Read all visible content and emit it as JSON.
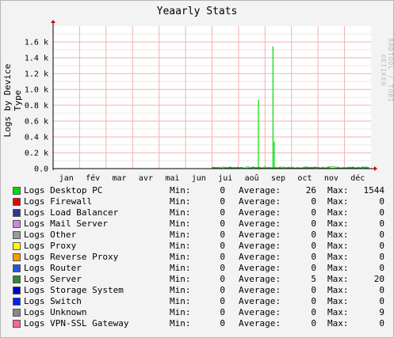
{
  "chart_data": {
    "type": "line",
    "title": "Yeaarly Stats",
    "ylabel": "Logs by Device Type",
    "watermark": "RRDTOOL / TOBI OETIKER",
    "y_ticks": [
      "0.0",
      "0.2 k",
      "0.4 k",
      "0.6 k",
      "0.8 k",
      "1.0 k",
      "1.2 k",
      "1.4 k",
      "1.6 k"
    ],
    "y_tick_values": [
      0,
      200,
      400,
      600,
      800,
      1000,
      1200,
      1400,
      1600
    ],
    "ylim": [
      0,
      1800
    ],
    "x_ticks": [
      "jan",
      "fév",
      "mar",
      "avr",
      "mai",
      "jun",
      "jui",
      "aoû",
      "sep",
      "oct",
      "nov",
      "déc"
    ],
    "grid": true,
    "spikes": [
      {
        "month": "aoû",
        "position": 0.75,
        "value": 870
      },
      {
        "month": "sep",
        "position": 0.3,
        "value": 1544
      },
      {
        "month": "sep",
        "position": 0.35,
        "value": 340
      }
    ],
    "activity_start": "jui",
    "baseline_level": 20,
    "series": [
      {
        "name": "Logs Desktop PC",
        "color": "#00dd00",
        "min": "0",
        "avg": "26",
        "max": "1544"
      },
      {
        "name": "Logs Firewall",
        "color": "#ee0000",
        "min": "0",
        "avg": "0",
        "max": "0"
      },
      {
        "name": "Logs Load Balancer",
        "color": "#333399",
        "min": "0",
        "avg": "0",
        "max": "0"
      },
      {
        "name": "Logs Mail Server",
        "color": "#cc88dd",
        "min": "0",
        "avg": "0",
        "max": "0"
      },
      {
        "name": "Logs Other",
        "color": "#999999",
        "min": "0",
        "avg": "0",
        "max": "0"
      },
      {
        "name": "Logs Proxy",
        "color": "#ffff00",
        "min": "0",
        "avg": "0",
        "max": "0"
      },
      {
        "name": "Logs Reverse Proxy",
        "color": "#ff9900",
        "min": "0",
        "avg": "0",
        "max": "0"
      },
      {
        "name": "Logs Router",
        "color": "#2255dd",
        "min": "0",
        "avg": "0",
        "max": "0"
      },
      {
        "name": "Logs Server",
        "color": "#338833",
        "min": "0",
        "avg": "5",
        "max": "20"
      },
      {
        "name": "Logs Storage System",
        "color": "#0000cc",
        "min": "0",
        "avg": "0",
        "max": "0"
      },
      {
        "name": "Logs Switch",
        "color": "#0022ee",
        "min": "0",
        "avg": "0",
        "max": "0"
      },
      {
        "name": "Logs Unknown",
        "color": "#888888",
        "min": "0",
        "avg": "0",
        "max": "9"
      },
      {
        "name": "Logs VPN-SSL Gateway",
        "color": "#ff6699",
        "min": "0",
        "avg": "0",
        "max": "0"
      }
    ]
  },
  "legend_labels": {
    "min": "Min:",
    "avg": "Average:",
    "max": "Max:"
  }
}
